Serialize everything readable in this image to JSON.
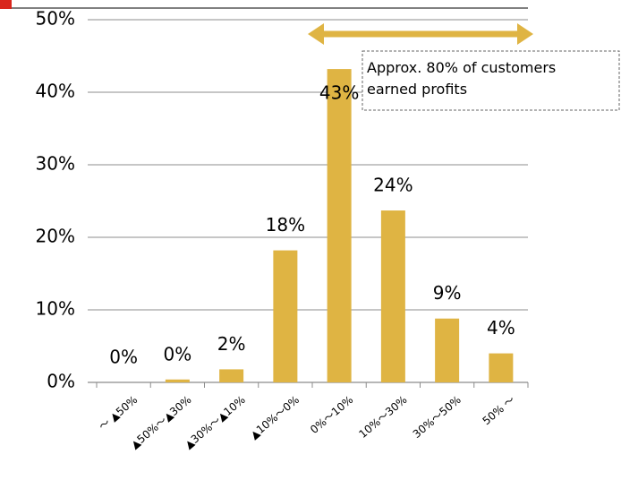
{
  "chart_data": {
    "type": "bar",
    "categories": [
      "～ ▲50%",
      "▲50%～▲30%",
      "▲30%～▲10%",
      "▲10%～0%",
      "0%～10%",
      "10%～30%",
      "30%～50%",
      "50% ～"
    ],
    "values": [
      0,
      0.4,
      1.8,
      18.2,
      43.2,
      23.7,
      8.8,
      4.0
    ],
    "value_labels": [
      "0%",
      "0%",
      "2%",
      "18%",
      "43%",
      "24%",
      "9%",
      "4%"
    ],
    "color": "#dfb443",
    "ylim": [
      0,
      50
    ],
    "yticks": [
      {
        "value": 0,
        "label": "0%"
      },
      {
        "value": 10,
        "label": "10%"
      },
      {
        "value": 20,
        "label": "20%"
      },
      {
        "value": 30,
        "label": "30%"
      },
      {
        "value": 40,
        "label": "40%"
      },
      {
        "value": 50,
        "label": "50%"
      }
    ],
    "grid": true,
    "annotation": "Approx. 80% of customers earned profits"
  }
}
